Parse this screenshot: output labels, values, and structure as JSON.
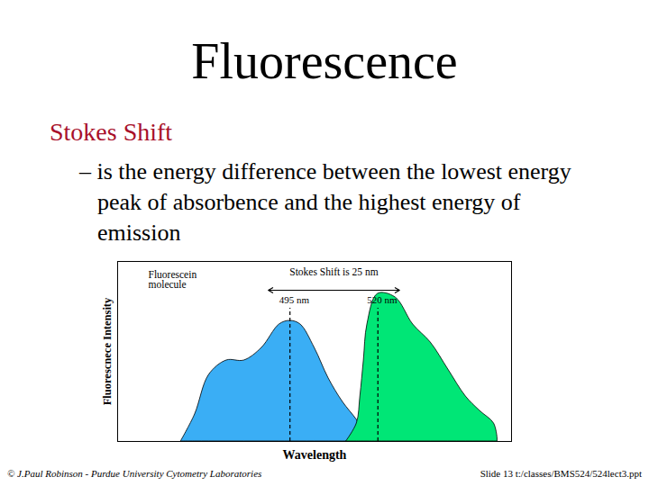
{
  "chart_data": {
    "type": "area",
    "title": "Fluorescence",
    "subtitle": "Stokes Shift",
    "text": "– is the energy difference between the lowest energy peak of absorbence and the highest energy of emission",
    "x_label": "Wavelength",
    "y_label": "Fluorescnece Intensity",
    "xlim": [
      446,
      558
    ],
    "ylim": [
      0,
      100
    ],
    "tick_labels": false,
    "series": [
      {
        "color": "#3aaef5",
        "x": [
          464,
          468,
          472,
          477,
          482,
          487,
          492,
          495,
          498,
          502,
          506,
          510,
          514,
          517,
          520
        ],
        "values": [
          0,
          15,
          37,
          45,
          45,
          52,
          65,
          67,
          65,
          52,
          35,
          22,
          12,
          3,
          0
        ]
      },
      {
        "color": "#00e676",
        "x": [
          511,
          514,
          515,
          516,
          517,
          520,
          525,
          530,
          535,
          540,
          545,
          549,
          553,
          554
        ],
        "values": [
          0,
          10,
          25,
          45,
          65,
          82,
          80,
          65,
          55,
          40,
          25,
          17,
          10,
          2
        ]
      }
    ],
    "label": "Fluorescein molecule",
    "peaks": [
      {
        "x": 495,
        "text": "495 nm"
      },
      {
        "x": 520,
        "text": "520 nm"
      }
    ],
    "shift": {
      "text": "Stokes Shift is 25 nm",
      "from": 495,
      "to": 520
    },
    "footer": [
      "© J.Paul Robinson - Purdue University Cytometry Laboratories",
      "Slide 13 t:/classes/BMS524/524lect3.ppt"
    ]
  }
}
